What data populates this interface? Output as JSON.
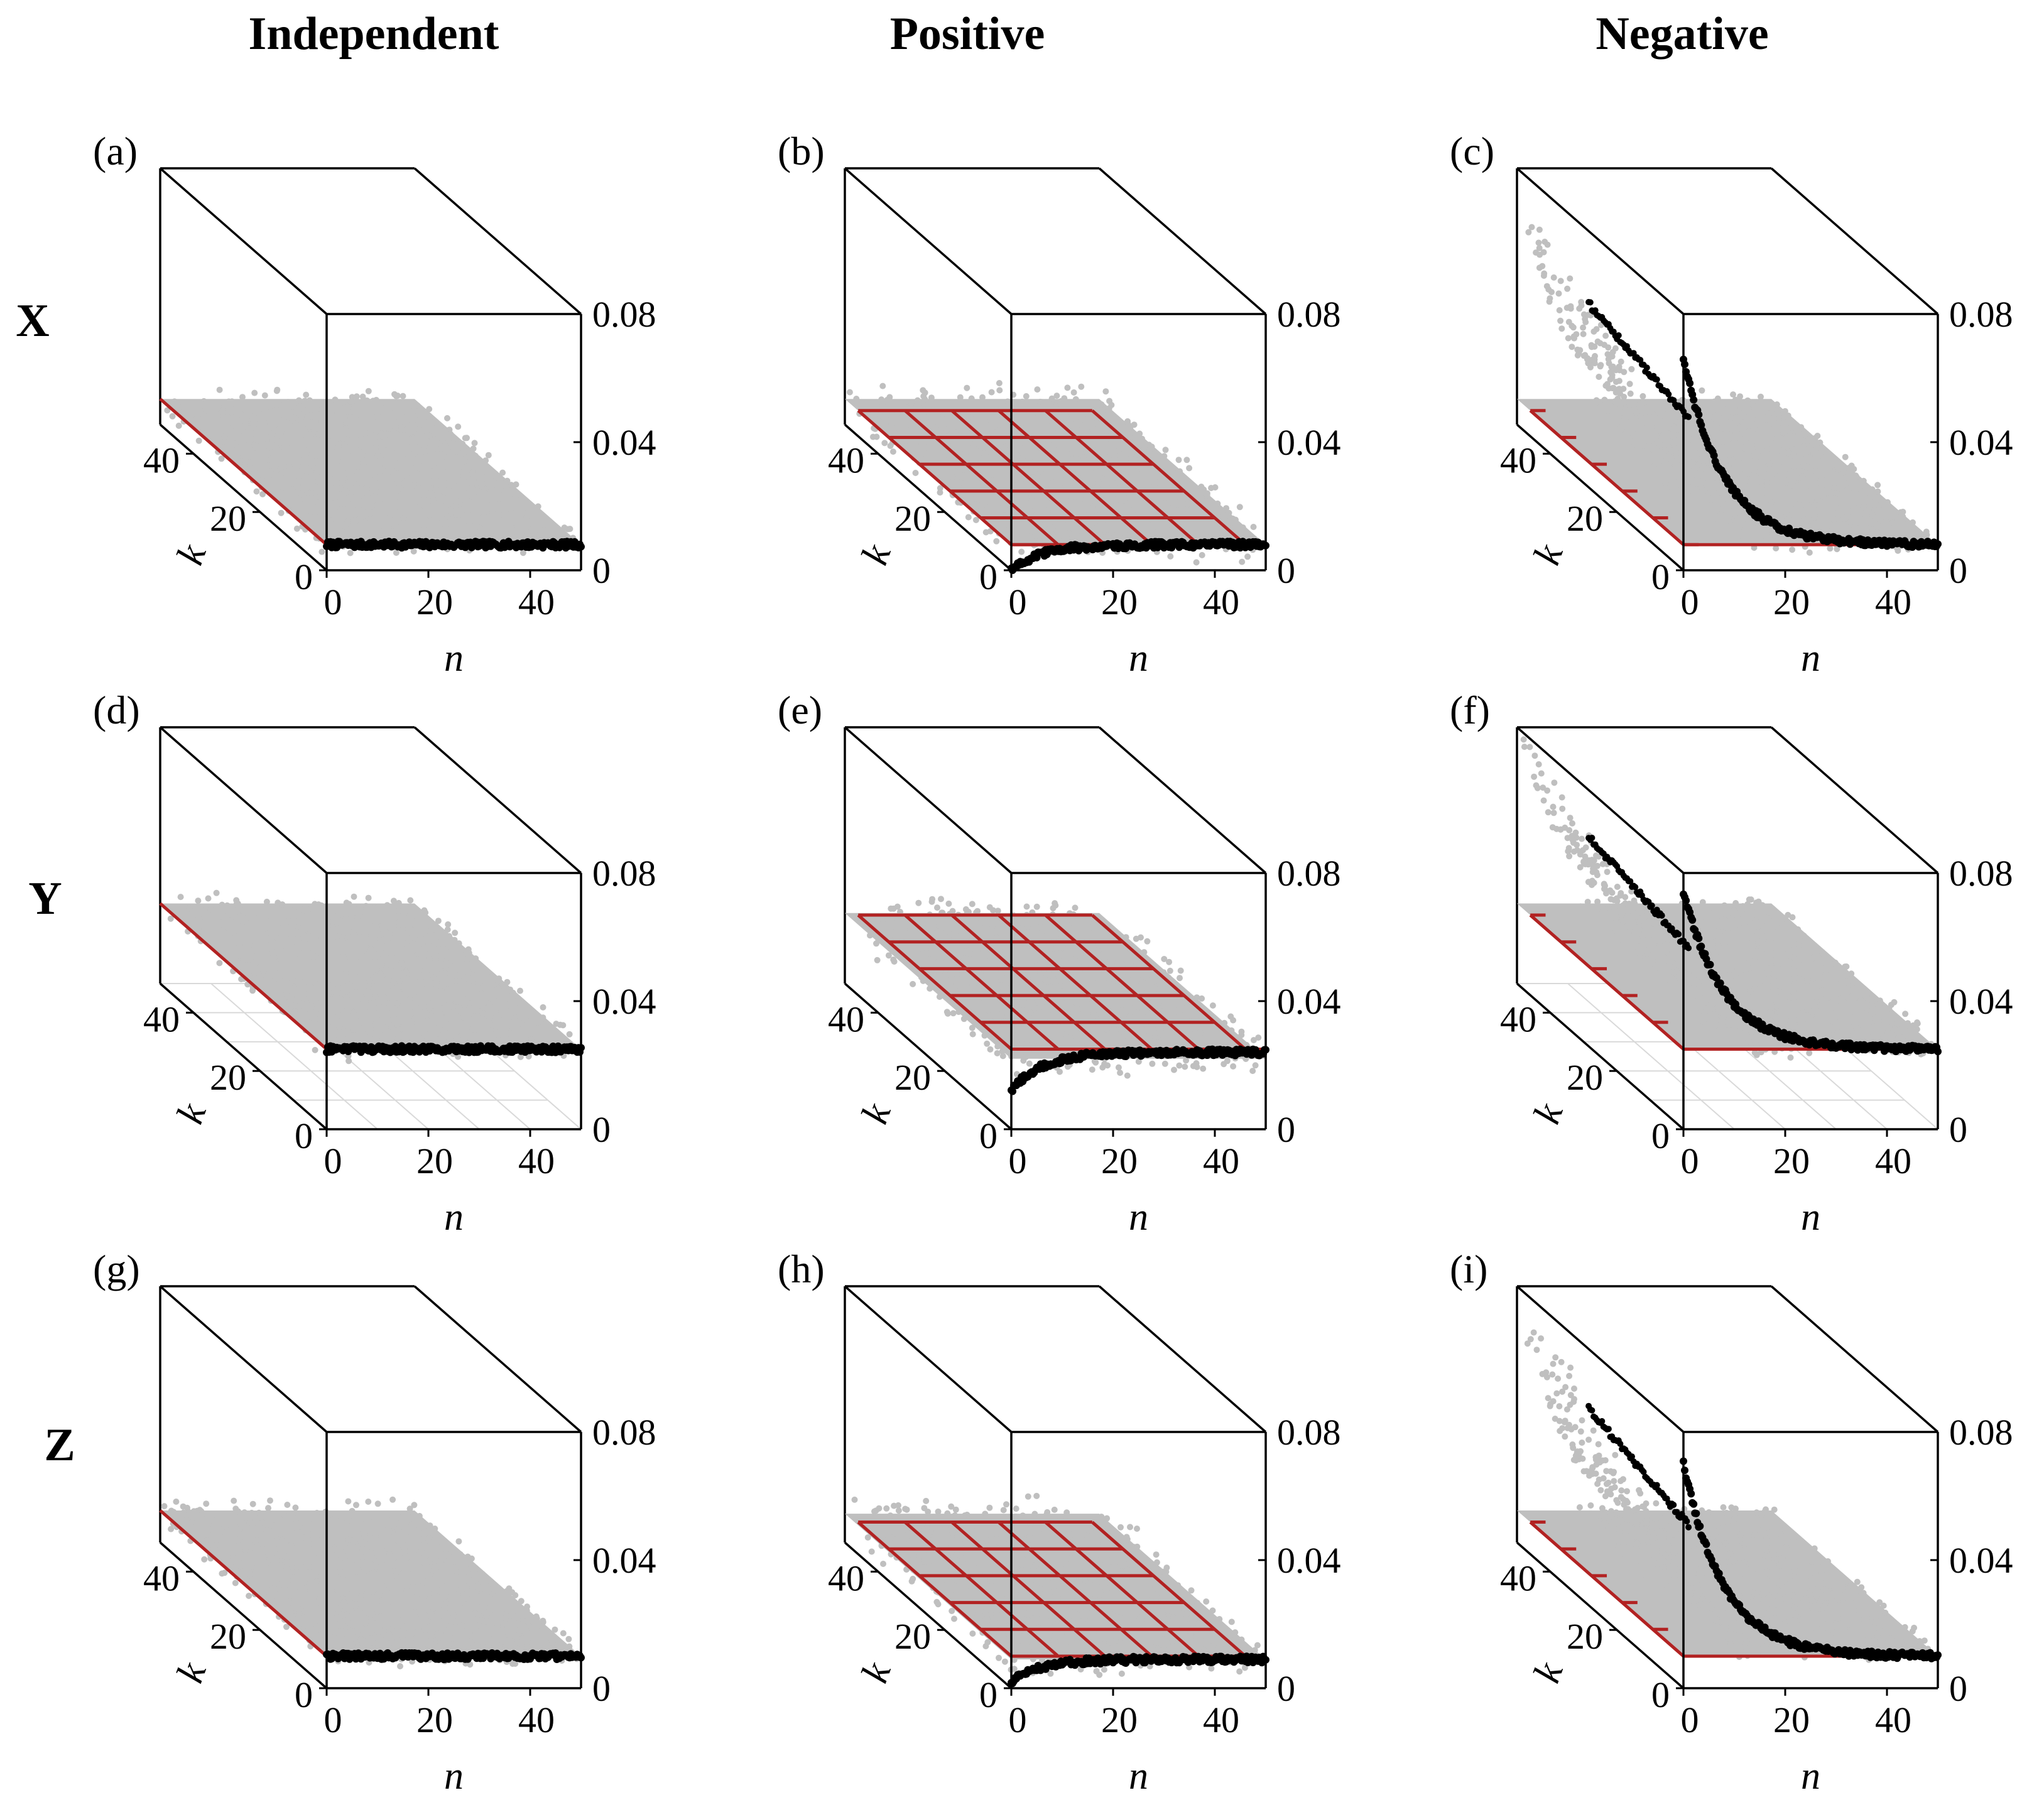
{
  "figure": {
    "column_titles": [
      "Independent",
      "Positive",
      "Negative"
    ],
    "row_titles": [
      "X",
      "Y",
      "Z"
    ],
    "colors": {
      "box": "#000000",
      "gray_points": "#bfbfbf",
      "black_points": "#000000",
      "red_grid": "#b22222",
      "floor_grid": "#d9d9d9"
    }
  },
  "chart_data": [
    {
      "panel": "(a)",
      "type": "scatter",
      "column": "Independent",
      "row": "X",
      "xlabel": "n",
      "ylabel": "k",
      "x_ticks": [
        "0",
        "20",
        "40"
      ],
      "y_ticks": [
        "0",
        "20",
        "40"
      ],
      "z_ticks": [
        "0",
        "0.04",
        "0.08"
      ],
      "xlim": [
        0,
        50
      ],
      "ylim": [
        0,
        50
      ],
      "zlim": [
        0,
        0.08
      ],
      "red_plane": 0.008,
      "red_grid_cells": 1,
      "gray_level": 0.008,
      "gray_spread": 0.004,
      "gray_peak": 0,
      "black_start": 0.008,
      "black_end": 0.008,
      "decay": 6,
      "floor_grid": false
    },
    {
      "panel": "(b)",
      "type": "scatter",
      "column": "Positive",
      "row": "X",
      "xlabel": "n",
      "ylabel": "k",
      "x_ticks": [
        "0",
        "20",
        "40"
      ],
      "y_ticks": [
        "0",
        "20",
        "40"
      ],
      "z_ticks": [
        "0",
        "0.04",
        "0.08"
      ],
      "xlim": [
        0,
        50
      ],
      "ylim": [
        0,
        50
      ],
      "zlim": [
        0,
        0.08
      ],
      "red_plane": 0.008,
      "red_grid_cells": 5,
      "gray_level": 0.008,
      "gray_spread": 0.006,
      "gray_peak": 0,
      "black_start": 0.0,
      "black_end": 0.008,
      "decay": 6,
      "floor_grid": false
    },
    {
      "panel": "(c)",
      "type": "scatter",
      "column": "Negative",
      "row": "X",
      "xlabel": "n",
      "ylabel": "k",
      "x_ticks": [
        "0",
        "20",
        "40"
      ],
      "y_ticks": [
        "0",
        "20",
        "40"
      ],
      "z_ticks": [
        "0",
        "0.04",
        "0.08"
      ],
      "xlim": [
        0,
        50
      ],
      "ylim": [
        0,
        50
      ],
      "zlim": [
        0,
        0.08
      ],
      "red_plane": 0.008,
      "red_grid_cells": 5,
      "gray_level": 0.008,
      "gray_spread": 0.003,
      "gray_peak": 0.075,
      "black_start": 0.066,
      "black_end": 0.008,
      "decay": 8,
      "floor_grid": false
    },
    {
      "panel": "(d)",
      "type": "scatter",
      "column": "Independent",
      "row": "Y",
      "xlabel": "n",
      "ylabel": "k",
      "x_ticks": [
        "0",
        "20",
        "40"
      ],
      "y_ticks": [
        "0",
        "20",
        "40"
      ],
      "z_ticks": [
        "0",
        "0.04",
        "0.08"
      ],
      "xlim": [
        0,
        50
      ],
      "ylim": [
        0,
        50
      ],
      "zlim": [
        0,
        0.08
      ],
      "red_plane": 0.025,
      "red_grid_cells": 1,
      "gray_level": 0.025,
      "gray_spread": 0.004,
      "gray_peak": 0,
      "black_start": 0.025,
      "black_end": 0.025,
      "decay": 6,
      "floor_grid": true
    },
    {
      "panel": "(e)",
      "type": "scatter",
      "column": "Positive",
      "row": "Y",
      "xlabel": "n",
      "ylabel": "k",
      "x_ticks": [
        "0",
        "20",
        "40"
      ],
      "y_ticks": [
        "0",
        "20",
        "40"
      ],
      "z_ticks": [
        "0",
        "0.04",
        "0.08"
      ],
      "xlim": [
        0,
        50
      ],
      "ylim": [
        0,
        50
      ],
      "zlim": [
        0,
        0.08
      ],
      "red_plane": 0.025,
      "red_grid_cells": 5,
      "gray_level": 0.022,
      "gray_spread": 0.006,
      "gray_peak": 0,
      "black_start": 0.012,
      "black_end": 0.024,
      "decay": 6,
      "floor_grid": false
    },
    {
      "panel": "(f)",
      "type": "scatter",
      "column": "Negative",
      "row": "Y",
      "xlabel": "n",
      "ylabel": "k",
      "x_ticks": [
        "0",
        "20",
        "40"
      ],
      "y_ticks": [
        "0",
        "20",
        "40"
      ],
      "z_ticks": [
        "0",
        "0.04",
        "0.08"
      ],
      "xlim": [
        0,
        50
      ],
      "ylim": [
        0,
        50
      ],
      "zlim": [
        0,
        0.08
      ],
      "red_plane": 0.025,
      "red_grid_cells": 5,
      "gray_level": 0.025,
      "gray_spread": 0.003,
      "gray_peak": 0.082,
      "black_start": 0.074,
      "black_end": 0.025,
      "decay": 8,
      "floor_grid": true
    },
    {
      "panel": "(g)",
      "type": "scatter",
      "column": "Independent",
      "row": "Z",
      "xlabel": "n",
      "ylabel": "k",
      "x_ticks": [
        "0",
        "20",
        "40"
      ],
      "y_ticks": [
        "0",
        "20",
        "40"
      ],
      "z_ticks": [
        "0",
        "0.04",
        "0.08"
      ],
      "xlim": [
        0,
        50
      ],
      "ylim": [
        0,
        50
      ],
      "zlim": [
        0,
        0.08
      ],
      "red_plane": 0.01,
      "red_grid_cells": 1,
      "gray_level": 0.01,
      "gray_spread": 0.004,
      "gray_peak": 0,
      "black_start": 0.01,
      "black_end": 0.01,
      "decay": 6,
      "floor_grid": false
    },
    {
      "panel": "(h)",
      "type": "scatter",
      "column": "Positive",
      "row": "Z",
      "xlabel": "n",
      "ylabel": "k",
      "x_ticks": [
        "0",
        "20",
        "40"
      ],
      "y_ticks": [
        "0",
        "20",
        "40"
      ],
      "z_ticks": [
        "0",
        "0.04",
        "0.08"
      ],
      "xlim": [
        0,
        50
      ],
      "ylim": [
        0,
        50
      ],
      "zlim": [
        0,
        0.08
      ],
      "red_plane": 0.01,
      "red_grid_cells": 5,
      "gray_level": 0.009,
      "gray_spread": 0.006,
      "gray_peak": 0,
      "black_start": 0.002,
      "black_end": 0.009,
      "decay": 6,
      "floor_grid": false
    },
    {
      "panel": "(i)",
      "type": "scatter",
      "column": "Negative",
      "row": "Z",
      "xlabel": "n",
      "ylabel": "k",
      "x_ticks": [
        "0",
        "20",
        "40"
      ],
      "y_ticks": [
        "0",
        "20",
        "40"
      ],
      "z_ticks": [
        "0",
        "0.04",
        "0.08"
      ],
      "xlim": [
        0,
        50
      ],
      "ylim": [
        0,
        50
      ],
      "zlim": [
        0,
        0.08
      ],
      "red_plane": 0.01,
      "red_grid_cells": 5,
      "gray_level": 0.01,
      "gray_spread": 0.003,
      "gray_peak": 0.08,
      "black_start": 0.07,
      "black_end": 0.01,
      "decay": 8,
      "floor_grid": false
    }
  ]
}
